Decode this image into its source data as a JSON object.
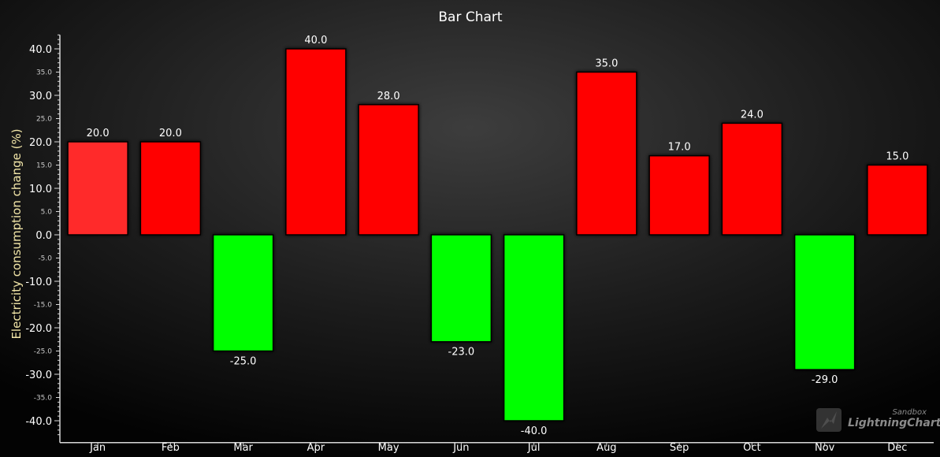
{
  "chart_data": {
    "type": "bar",
    "title": "Bar Chart",
    "xlabel": "",
    "ylabel": "Electricity consumption change (%)",
    "categories": [
      "Jan",
      "Feb",
      "Mar",
      "Apr",
      "May",
      "Jun",
      "Jul",
      "Aug",
      "Sep",
      "Oct",
      "Nov",
      "Dec"
    ],
    "values": [
      20,
      20,
      -25,
      40,
      28,
      -23,
      -40,
      35,
      17,
      24,
      -29,
      15
    ],
    "value_labels": [
      "20.0",
      "20.0",
      "-25.0",
      "40.0",
      "28.0",
      "-23.0",
      "-40.0",
      "35.0",
      "17.0",
      "24.0",
      "-29.0",
      "15.0"
    ],
    "ylim": [
      -43,
      43
    ],
    "major_ticks": [
      -40,
      -30,
      -20,
      -10,
      0,
      10,
      20,
      30,
      40
    ],
    "major_tick_labels": [
      "-40.0",
      "-30.0",
      "-20.0",
      "-10.0",
      "0.0",
      "10.0",
      "20.0",
      "30.0",
      "40.0"
    ],
    "minor_ticks": [
      -35,
      -25,
      -15,
      -5,
      5,
      15,
      25,
      35
    ],
    "minor_tick_labels": [
      "-35.0",
      "-25.0",
      "-15.0",
      "-5.0",
      "5.0",
      "15.0",
      "25.0",
      "35.0"
    ],
    "grid": false,
    "legend": "none",
    "colors": {
      "positive": "#ff0000",
      "positive_first": "#ff2a2a",
      "negative": "#00ff00",
      "background_center": "#3a3a3a",
      "background_edge": "#050505",
      "axis": "#d8d8d8"
    }
  },
  "watermark": {
    "line1": "Sandbox",
    "line2": "LightningChart",
    "mark": "®",
    "icon": "lightning-logo-icon"
  }
}
